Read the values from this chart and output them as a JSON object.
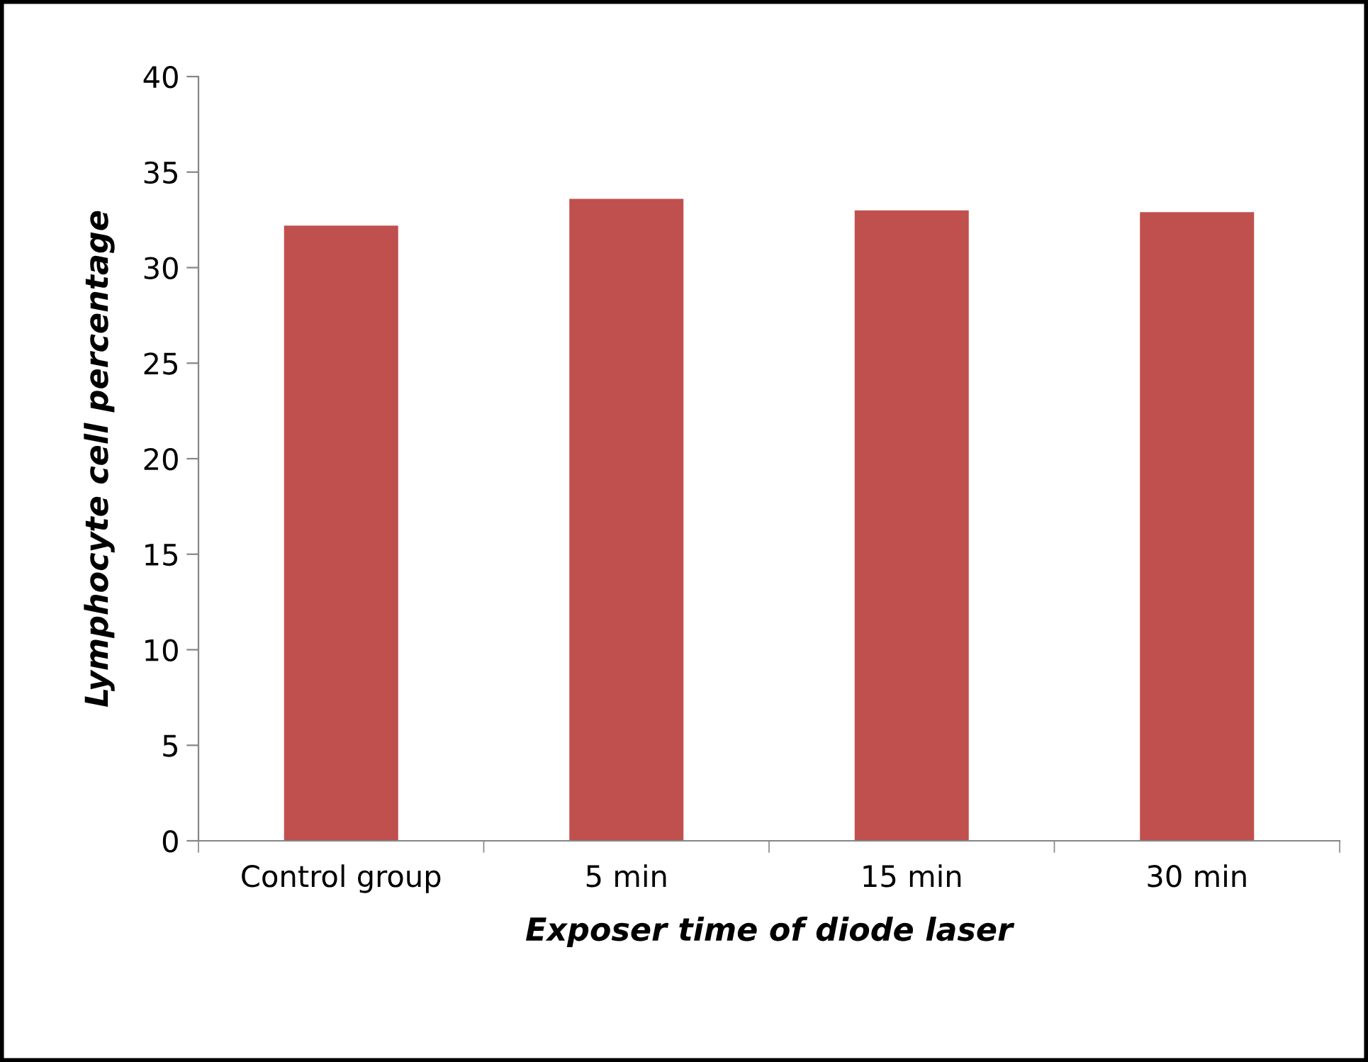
{
  "chart_data": {
    "type": "bar",
    "xlabel": "Exposer time of diode laser",
    "ylabel": "Lymphocyte cell percentage",
    "categories": [
      "Control group",
      "5 min",
      "15 min",
      "30 min"
    ],
    "values": [
      32.2,
      33.6,
      33.0,
      32.9
    ],
    "color": "#c0504d",
    "ylim": [
      0,
      40
    ],
    "yticks": [
      0,
      5,
      10,
      15,
      20,
      25,
      30,
      35,
      40
    ],
    "grid": false,
    "legend": false
  }
}
